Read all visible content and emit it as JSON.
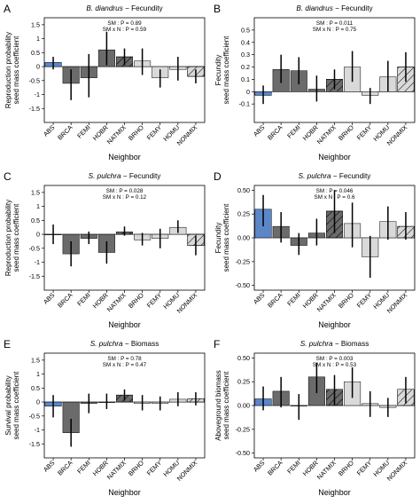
{
  "chart_data": [
    {
      "type": "bar",
      "panel": "A",
      "title_species": "B. diandrus",
      "title_rest": " − Fecundity",
      "stat_lines": [
        "SM : P = 0.89",
        "SM x N : P = 0.59"
      ],
      "ylabel": [
        "Reproduction probability",
        "seed mass coefficient"
      ],
      "xlabel": "Neighbor",
      "ylim": [
        -2,
        1.75
      ],
      "yticks": [
        1.5,
        1.0,
        0.5,
        0.0,
        -0.5,
        -1.0,
        -1.5
      ],
      "ytick_labels": [
        "1.5",
        "1",
        "0.5",
        "0",
        "-0.5",
        "-1",
        "-1.5"
      ],
      "categories": [
        "ABS",
        "BRCA",
        "FEMI",
        "HOBR",
        "NATMIX",
        "BRHO",
        "FEMY",
        "HOMU",
        "NONMIX"
      ],
      "values": [
        0.15,
        -0.6,
        -0.4,
        0.6,
        0.35,
        0.2,
        -0.4,
        -0.1,
        -0.35
      ],
      "err_low": [
        -0.1,
        -1.2,
        -1.1,
        0.05,
        0.05,
        -0.3,
        -0.75,
        -0.5,
        -0.6
      ],
      "err_high": [
        0.35,
        -0.1,
        0.45,
        1.25,
        0.65,
        0.65,
        -0.1,
        0.35,
        -0.1
      ]
    },
    {
      "type": "bar",
      "panel": "B",
      "title_species": "B. diandrus",
      "title_rest": " − Fecundity",
      "stat_lines": [
        "SM : P = 0.011",
        "SM x N : P = 0.75"
      ],
      "ylabel": [
        "Fecundity",
        "seed mass coefficient"
      ],
      "xlabel": "Neighbor",
      "ylim": [
        -0.25,
        0.6
      ],
      "yticks": [
        0.5,
        0.4,
        0.3,
        0.2,
        0.1,
        0.0,
        -0.1
      ],
      "ytick_labels": [
        "0.5",
        "0.4",
        "0.3",
        "0.2",
        "0.1",
        "0",
        "-0.1"
      ],
      "categories": [
        "ABS",
        "BRCA",
        "FEMI",
        "HOBR",
        "NATMIX",
        "BRHO",
        "FEMY",
        "HOMU",
        "NONMIX"
      ],
      "values": [
        -0.03,
        0.18,
        0.17,
        0.02,
        0.1,
        0.2,
        -0.03,
        0.12,
        0.2
      ],
      "err_low": [
        -0.1,
        0.07,
        0.06,
        -0.08,
        0.02,
        0.08,
        -0.1,
        0.0,
        0.08
      ],
      "err_high": [
        0.05,
        0.3,
        0.28,
        0.13,
        0.18,
        0.33,
        0.03,
        0.25,
        0.32
      ]
    },
    {
      "type": "bar",
      "panel": "C",
      "title_species": "S. pulchra",
      "title_rest": " − Fecundity",
      "stat_lines": [
        "SM : P = 0.028",
        "SM x N : P = 0.12"
      ],
      "ylabel": [
        "Reproduction probability",
        "seed mass coefficient"
      ],
      "xlabel": "Neighbor",
      "ylim": [
        -2,
        1.75
      ],
      "yticks": [
        1.5,
        1.0,
        0.5,
        0.0,
        -0.5,
        -1.0,
        -1.5
      ],
      "ytick_labels": [
        "1.5",
        "1",
        "0.5",
        "0",
        "-0.5",
        "-1",
        "-1.5"
      ],
      "categories": [
        "ABS",
        "BRCA",
        "FEMI",
        "HOBR",
        "NATMIX",
        "BRHO",
        "FEMY",
        "HOMU",
        "NONMIX"
      ],
      "values": [
        0.0,
        -0.7,
        -0.15,
        -0.65,
        0.08,
        -0.2,
        -0.15,
        0.25,
        -0.4
      ],
      "err_low": [
        -0.35,
        -1.15,
        -0.35,
        -1.05,
        -0.05,
        -0.4,
        -0.5,
        0.05,
        -0.75
      ],
      "err_high": [
        0.35,
        -0.25,
        0.1,
        -0.25,
        0.28,
        0.05,
        0.2,
        0.5,
        -0.05
      ]
    },
    {
      "type": "bar",
      "panel": "D",
      "title_species": "S. pulchra",
      "title_rest": " − Fecundity",
      "stat_lines": [
        "SM : P = 0.046",
        "SM x N : P = 0.6"
      ],
      "ylabel": [
        "Fecundity",
        "seed mass coefficient"
      ],
      "xlabel": "Neighbor",
      "ylim": [
        -0.55,
        0.55
      ],
      "yticks": [
        0.5,
        0.25,
        0.0,
        -0.25,
        -0.5
      ],
      "ytick_labels": [
        "0.50",
        "0.25",
        "0.00",
        "-0.25",
        "-0.50"
      ],
      "categories": [
        "ABS",
        "BRCA",
        "FEMI",
        "HOBR",
        "NATMIX",
        "BRHO",
        "FEMY",
        "HOMU",
        "NONMIX"
      ],
      "values": [
        0.3,
        0.12,
        -0.08,
        0.05,
        0.28,
        0.15,
        -0.2,
        0.17,
        0.12
      ],
      "err_low": [
        0.12,
        -0.05,
        -0.18,
        -0.08,
        0.05,
        -0.1,
        -0.42,
        -0.02,
        -0.02
      ],
      "err_high": [
        0.45,
        0.27,
        0.05,
        0.2,
        0.5,
        0.37,
        0.02,
        0.33,
        0.27
      ]
    },
    {
      "type": "bar",
      "panel": "E",
      "title_species": "S. pulchra",
      "title_rest": " − Biomass",
      "stat_lines": [
        "SM : P = 0.78",
        "SM x N : P = 0.47"
      ],
      "ylabel": [
        "Survival probability",
        "seed mass coefficient"
      ],
      "xlabel": "Neighbor",
      "ylim": [
        -2,
        1.75
      ],
      "yticks": [
        1.5,
        1.0,
        0.5,
        0.0,
        -0.5,
        -1.0,
        -1.5
      ],
      "ytick_labels": [
        "1.5",
        "1",
        "0.5",
        "0",
        "-0.5",
        "-1",
        "-1.5"
      ],
      "categories": [
        "ABS",
        "BRCA",
        "FEMI",
        "HOBR",
        "NATMIX",
        "BRHO",
        "FEMY",
        "HOMU",
        "NONMIX"
      ],
      "values": [
        -0.15,
        -1.1,
        -0.05,
        0.0,
        0.25,
        -0.05,
        -0.05,
        0.1,
        0.12
      ],
      "err_low": [
        -0.55,
        -1.6,
        -0.4,
        -0.25,
        0.05,
        -0.3,
        -0.3,
        -0.15,
        -0.12
      ],
      "err_high": [
        0.25,
        -0.6,
        0.3,
        0.3,
        0.45,
        0.25,
        0.2,
        0.35,
        0.35
      ]
    },
    {
      "type": "bar",
      "panel": "F",
      "title_species": "S. pulchra",
      "title_rest": " − Biomass",
      "stat_lines": [
        "SM : P = 0.003",
        "SM x N : P = 0.53"
      ],
      "ylabel": [
        "Aboveground biomass",
        "seed mass coefficient"
      ],
      "xlabel": "Neighbor",
      "ylim": [
        -0.55,
        0.55
      ],
      "yticks": [
        0.5,
        0.25,
        0.0,
        -0.25,
        -0.5
      ],
      "ytick_labels": [
        "0.50",
        "0.25",
        "0.00",
        "-0.25",
        "-0.50"
      ],
      "categories": [
        "ABS",
        "BRCA",
        "FEMI",
        "HOBR",
        "NATMIX",
        "BRHO",
        "FEMY",
        "HOMU",
        "NONMIX"
      ],
      "values": [
        0.07,
        0.15,
        0.0,
        0.3,
        0.17,
        0.25,
        0.02,
        -0.02,
        0.17
      ],
      "err_low": [
        -0.05,
        -0.02,
        -0.15,
        0.13,
        0.0,
        0.08,
        -0.12,
        -0.12,
        0.02
      ],
      "err_high": [
        0.2,
        0.3,
        0.12,
        0.45,
        0.32,
        0.4,
        0.15,
        0.08,
        0.3
      ]
    }
  ],
  "bar_styles": [
    {
      "fill": "#5b87c9",
      "hatch": false
    },
    {
      "fill": "#6b6b6b",
      "hatch": false
    },
    {
      "fill": "#6b6b6b",
      "hatch": false
    },
    {
      "fill": "#6b6b6b",
      "hatch": false
    },
    {
      "fill": "#6b6b6b",
      "hatch": true
    },
    {
      "fill": "#d9d9d9",
      "hatch": false
    },
    {
      "fill": "#d9d9d9",
      "hatch": false
    },
    {
      "fill": "#d9d9d9",
      "hatch": false
    },
    {
      "fill": "#d9d9d9",
      "hatch": true
    }
  ]
}
